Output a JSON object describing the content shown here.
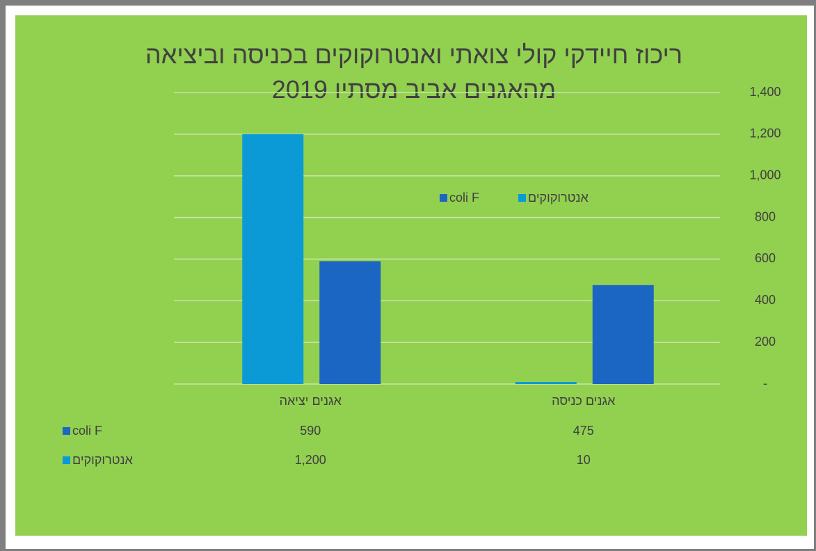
{
  "chart_data": {
    "type": "bar",
    "title": "ריכוז חיידקי קולי צואתי ואנטרוקוקים בכניסה וביציאה מהאגנים אביב מסתיו 2019",
    "categories": [
      "אגנים יציאה",
      "אגנים כניסה"
    ],
    "series": [
      {
        "name": "אנטרוקוקים",
        "color": "#0b9ad6",
        "values": [
          1200,
          10
        ],
        "value_labels": [
          "1,200",
          "10"
        ]
      },
      {
        "name": "coli F",
        "color": "#1b66c2",
        "values": [
          590,
          475
        ],
        "value_labels": [
          "590",
          "475"
        ]
      }
    ],
    "ylim": [
      0,
      1400
    ],
    "yticks": [
      {
        "value": 0,
        "label": "-"
      },
      200,
      400,
      600,
      800,
      {
        "value": 1000,
        "label": "1,000"
      },
      {
        "value": 1200,
        "label": "1,200"
      },
      {
        "value": 1400,
        "label": "1,400"
      }
    ],
    "grid": true,
    "legend": "center"
  }
}
